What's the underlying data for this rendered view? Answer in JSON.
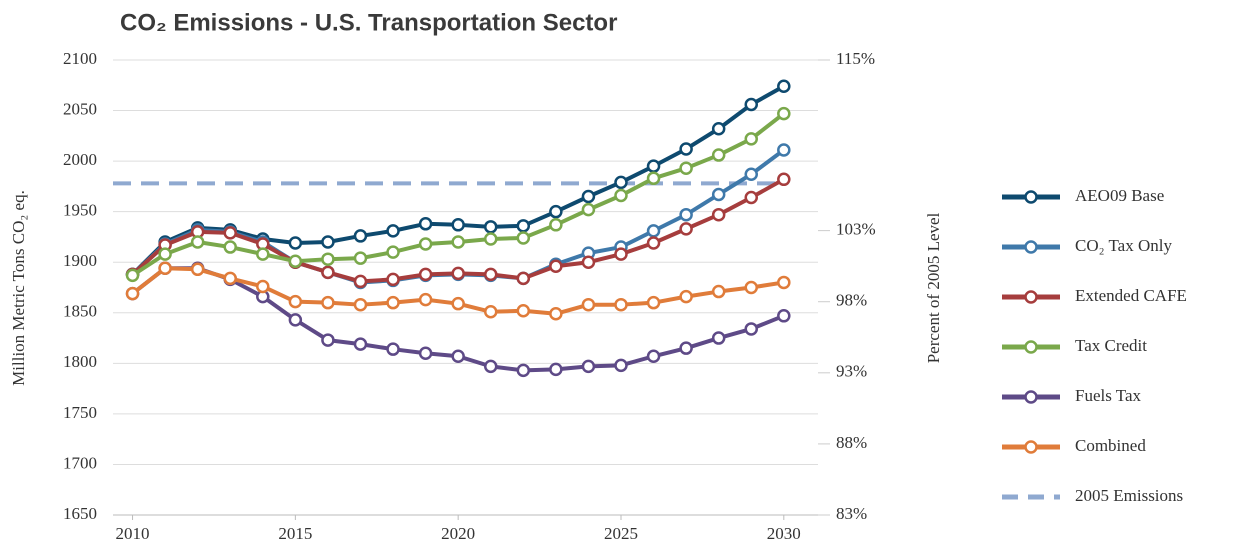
{
  "chart_data": {
    "type": "line",
    "title": "CO₂ Emissions - U.S. Transportation Sector",
    "y_label": "Million Metric Tons CO₂ eq.",
    "y2_label": "Percent of 2005 Level",
    "x": [
      2010,
      2011,
      2012,
      2013,
      2014,
      2015,
      2016,
      2017,
      2018,
      2019,
      2020,
      2021,
      2022,
      2023,
      2024,
      2025,
      2026,
      2027,
      2028,
      2029,
      2030
    ],
    "xlim": [
      2009.4,
      2031.05
    ],
    "xticks": [
      2010,
      2015,
      2020,
      2025,
      2030
    ],
    "ylim": [
      1650,
      2100
    ],
    "yticks": [
      1650,
      1700,
      1750,
      1800,
      1850,
      1900,
      1950,
      2000,
      2050,
      2100
    ],
    "y2lim": [
      83,
      115
    ],
    "y2ticks": [
      {
        "value": 83,
        "label": "83%"
      },
      {
        "value": 88,
        "label": "88%"
      },
      {
        "value": 93,
        "label": "93%"
      },
      {
        "value": 98,
        "label": "98%"
      },
      {
        "value": 103,
        "label": "103%"
      },
      {
        "value": 115,
        "label": "115%"
      }
    ],
    "grid": true,
    "legend": "right",
    "series": [
      {
        "name": "AEO09 Base",
        "color": "#0e4a6f",
        "values": [
          1888,
          1920,
          1934,
          1932,
          1923,
          1919,
          1920,
          1926,
          1931,
          1938,
          1937,
          1935,
          1936,
          1950,
          1965,
          1979,
          1995,
          2012,
          2032,
          2056,
          2074
        ]
      },
      {
        "name": "CO₂ Tax Only",
        "color": "#3f79aa",
        "values": [
          1888,
          1918,
          1932,
          1930,
          1920,
          1900,
          1890,
          1880,
          1882,
          1887,
          1888,
          1887,
          1884,
          1898,
          1909,
          1915,
          1931,
          1947,
          1967,
          1987,
          2011
        ]
      },
      {
        "name": "Extended CAFE",
        "color": "#a63d3d",
        "values": [
          1888,
          1917,
          1930,
          1929,
          1918,
          1900,
          1890,
          1881,
          1883,
          1888,
          1889,
          1888,
          1884,
          1896,
          1900,
          1908,
          1919,
          1933,
          1947,
          1964,
          1982
        ]
      },
      {
        "name": "Tax Credit",
        "color": "#7aa84b",
        "values": [
          1887,
          1908,
          1920,
          1915,
          1908,
          1901,
          1903,
          1904,
          1910,
          1918,
          1920,
          1923,
          1924,
          1937,
          1952,
          1966,
          1983,
          1993,
          2006,
          2022,
          2047
        ]
      },
      {
        "name": "Fuels Tax",
        "color": "#5e4a87",
        "values": [
          1869,
          1894,
          1894,
          1883,
          1866,
          1843,
          1823,
          1819,
          1814,
          1810,
          1807,
          1797,
          1793,
          1794,
          1797,
          1798,
          1807,
          1815,
          1825,
          1834,
          1847
        ]
      },
      {
        "name": "Combined",
        "color": "#e07c3a",
        "values": [
          1869,
          1894,
          1893,
          1884,
          1876,
          1861,
          1860,
          1858,
          1860,
          1863,
          1859,
          1851,
          1852,
          1849,
          1858,
          1858,
          1860,
          1866,
          1871,
          1875,
          1880
        ]
      }
    ],
    "reference_line": {
      "name": "2005 Emissions",
      "color": "#8fa9d0",
      "value": 1978,
      "dashed": true
    }
  }
}
